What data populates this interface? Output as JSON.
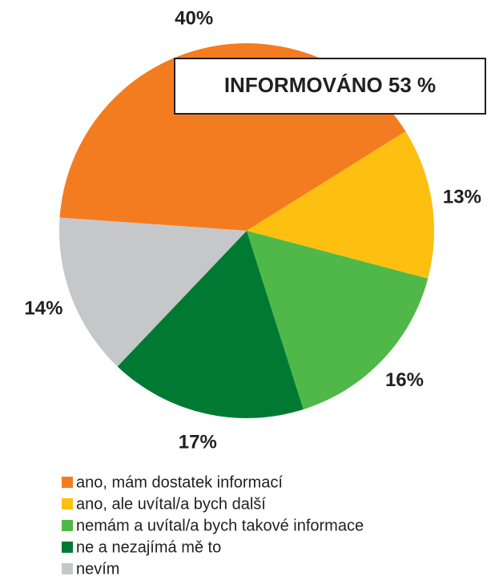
{
  "chart_data": {
    "type": "pie",
    "annotation": "INFORMOVÁNO 53 %",
    "categories": [
      "ano, mám dostatek informací",
      "ano, ale uvítal/a bych další",
      "nemám a uvítal/a bych takové informace",
      "ne a nezajímá mě to",
      "nevím"
    ],
    "values": [
      40,
      13,
      16,
      17,
      14
    ],
    "value_labels": [
      "40%",
      "13%",
      "16%",
      "17%",
      "14%"
    ],
    "colors": [
      "#f47c20",
      "#fdc010",
      "#50b848",
      "#007a33",
      "#c6c7c9"
    ],
    "legend": "bottom"
  }
}
